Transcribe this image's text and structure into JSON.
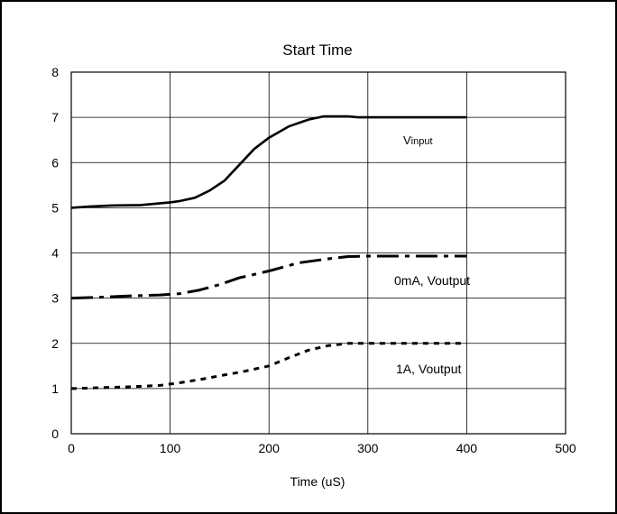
{
  "chart_data": {
    "type": "line",
    "title": "Start Time",
    "xlabel": "Time (uS)",
    "ylabel": "",
    "xlim": [
      0,
      500
    ],
    "ylim": [
      0,
      8
    ],
    "xticks": [
      "0",
      "100",
      "200",
      "300",
      "400",
      "500"
    ],
    "yticks": [
      "0",
      "1",
      "2",
      "3",
      "4",
      "5",
      "6",
      "7",
      "8"
    ],
    "grid": true,
    "series": [
      {
        "name": "Vinput",
        "label_main": "V",
        "label_sub": "input",
        "style": "solid",
        "color": "#000000",
        "x": [
          0,
          20,
          40,
          70,
          100,
          110,
          125,
          140,
          155,
          170,
          185,
          200,
          220,
          240,
          255,
          265,
          280,
          290,
          300,
          350,
          400
        ],
        "y": [
          5.0,
          5.03,
          5.05,
          5.06,
          5.12,
          5.15,
          5.22,
          5.38,
          5.6,
          5.95,
          6.3,
          6.55,
          6.8,
          6.95,
          7.02,
          7.02,
          7.02,
          7.0,
          7.0,
          7.0,
          7.0
        ]
      },
      {
        "name": "0mA, Voutput",
        "style": "dashdot",
        "color": "#000000",
        "x": [
          0,
          30,
          60,
          90,
          110,
          130,
          150,
          170,
          200,
          230,
          260,
          280,
          300,
          350,
          400
        ],
        "y": [
          3.0,
          3.02,
          3.05,
          3.07,
          3.1,
          3.18,
          3.3,
          3.45,
          3.6,
          3.78,
          3.87,
          3.92,
          3.93,
          3.93,
          3.93
        ]
      },
      {
        "name": "1A, Voutput",
        "style": "dotted",
        "color": "#000000",
        "x": [
          0,
          30,
          60,
          90,
          110,
          130,
          150,
          175,
          200,
          220,
          240,
          260,
          280,
          300,
          350,
          400
        ],
        "y": [
          1.0,
          1.02,
          1.04,
          1.07,
          1.13,
          1.2,
          1.28,
          1.38,
          1.5,
          1.68,
          1.85,
          1.95,
          2.0,
          2.0,
          2.0,
          2.0
        ]
      }
    ]
  }
}
